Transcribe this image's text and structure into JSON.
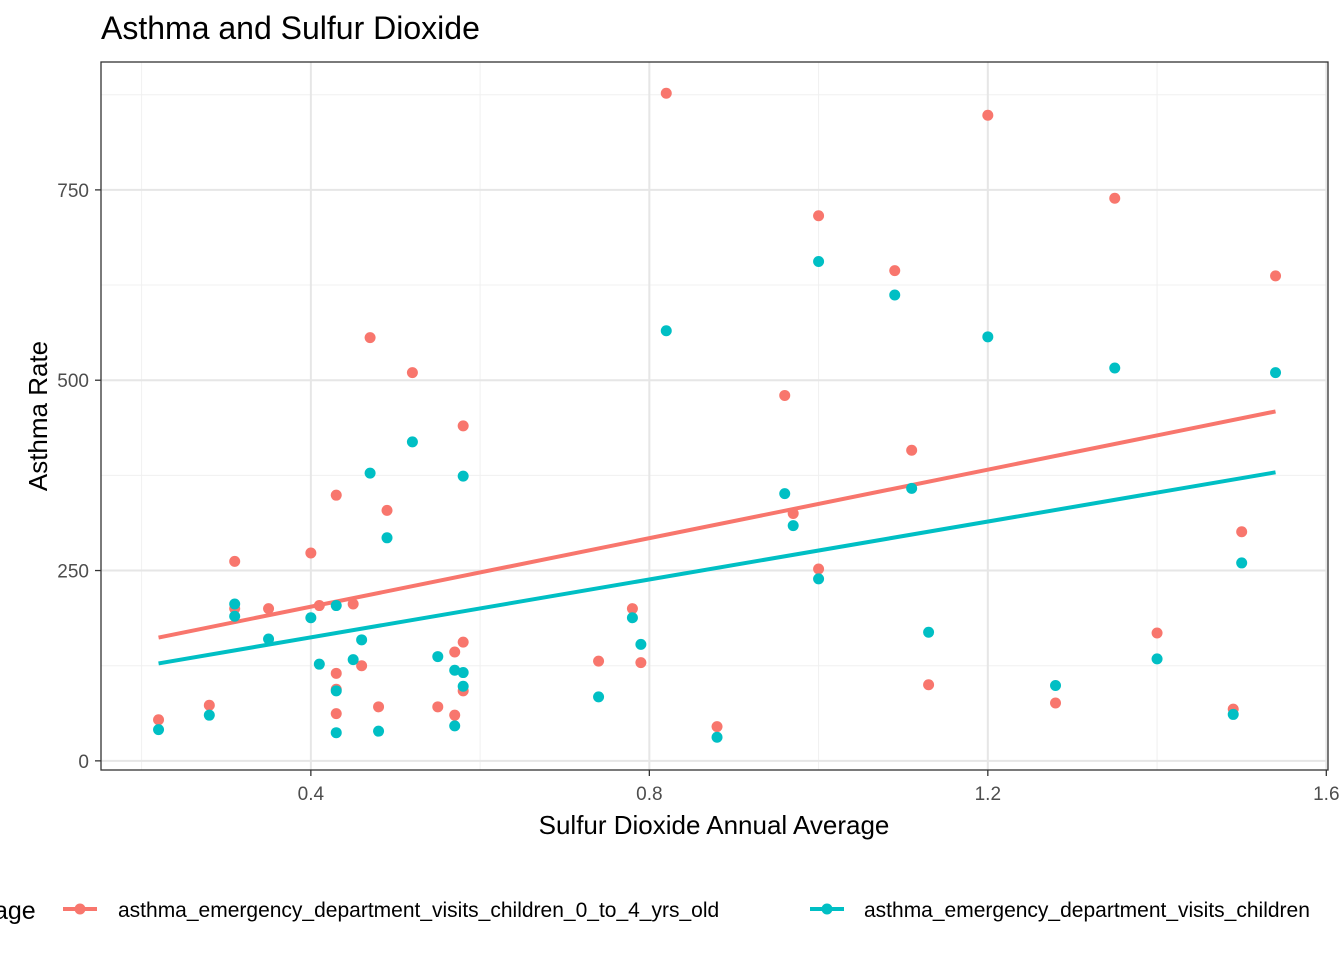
{
  "chart_data": {
    "type": "scatter",
    "title": "Asthma and Sulfur Dioxide",
    "xlabel": "Sulfur Dioxide Annual Average",
    "ylabel": "Asthma Rate",
    "xlim": [
      0.152,
      1.602
    ],
    "ylim": [
      -12,
      918
    ],
    "x_ticks": [
      0.4,
      0.8,
      1.2,
      1.6
    ],
    "x_tick_labels": [
      "0.4",
      "0.8",
      "1.2",
      "1.6"
    ],
    "y_ticks": [
      0,
      250,
      500,
      750
    ],
    "y_tick_labels": [
      "0",
      "250",
      "500",
      "750"
    ],
    "grid": true,
    "legend_position": "bottom",
    "legend_title": "age",
    "series": [
      {
        "name": "asthma_emergency_department_visits_children_0_to_4_yrs_old",
        "color": "#F8766D",
        "trend": [
          [
            0.22,
            162
          ],
          [
            1.54,
            459
          ]
        ],
        "points": [
          [
            0.22,
            54
          ],
          [
            0.28,
            73
          ],
          [
            0.31,
            262
          ],
          [
            0.31,
            200
          ],
          [
            0.35,
            200
          ],
          [
            0.4,
            273
          ],
          [
            0.41,
            204
          ],
          [
            0.43,
            349
          ],
          [
            0.43,
            115
          ],
          [
            0.43,
            94
          ],
          [
            0.43,
            62
          ],
          [
            0.45,
            206
          ],
          [
            0.46,
            125
          ],
          [
            0.47,
            556
          ],
          [
            0.48,
            71
          ],
          [
            0.49,
            329
          ],
          [
            0.52,
            510
          ],
          [
            0.55,
            71
          ],
          [
            0.57,
            143
          ],
          [
            0.57,
            60
          ],
          [
            0.58,
            440
          ],
          [
            0.58,
            156
          ],
          [
            0.58,
            92
          ],
          [
            0.74,
            131
          ],
          [
            0.78,
            200
          ],
          [
            0.79,
            129
          ],
          [
            0.82,
            877
          ],
          [
            0.88,
            45
          ],
          [
            0.96,
            480
          ],
          [
            0.97,
            325
          ],
          [
            1.0,
            716
          ],
          [
            1.0,
            252
          ],
          [
            1.09,
            644
          ],
          [
            1.11,
            408
          ],
          [
            1.13,
            100
          ],
          [
            1.2,
            848
          ],
          [
            1.28,
            76
          ],
          [
            1.35,
            739
          ],
          [
            1.4,
            168
          ],
          [
            1.49,
            68
          ],
          [
            1.5,
            301
          ],
          [
            1.54,
            637
          ]
        ]
      },
      {
        "name": "asthma_emergency_department_visits_children",
        "color": "#00BFC4",
        "trend": [
          [
            0.22,
            128
          ],
          [
            1.54,
            379
          ]
        ],
        "points": [
          [
            0.22,
            41
          ],
          [
            0.28,
            60
          ],
          [
            0.31,
            206
          ],
          [
            0.31,
            190
          ],
          [
            0.35,
            160
          ],
          [
            0.4,
            188
          ],
          [
            0.41,
            127
          ],
          [
            0.43,
            204
          ],
          [
            0.43,
            92
          ],
          [
            0.43,
            37
          ],
          [
            0.45,
            133
          ],
          [
            0.46,
            159
          ],
          [
            0.47,
            378
          ],
          [
            0.48,
            39
          ],
          [
            0.49,
            293
          ],
          [
            0.52,
            419
          ],
          [
            0.55,
            137
          ],
          [
            0.57,
            119
          ],
          [
            0.57,
            46
          ],
          [
            0.58,
            374
          ],
          [
            0.58,
            116
          ],
          [
            0.58,
            98
          ],
          [
            0.74,
            84
          ],
          [
            0.78,
            188
          ],
          [
            0.79,
            153
          ],
          [
            0.82,
            565
          ],
          [
            0.88,
            31
          ],
          [
            0.96,
            351
          ],
          [
            0.97,
            309
          ],
          [
            1.0,
            656
          ],
          [
            1.0,
            239
          ],
          [
            1.09,
            612
          ],
          [
            1.11,
            358
          ],
          [
            1.13,
            169
          ],
          [
            1.2,
            557
          ],
          [
            1.28,
            99
          ],
          [
            1.35,
            516
          ],
          [
            1.4,
            134
          ],
          [
            1.49,
            61
          ],
          [
            1.5,
            260
          ],
          [
            1.54,
            510
          ]
        ]
      }
    ]
  }
}
